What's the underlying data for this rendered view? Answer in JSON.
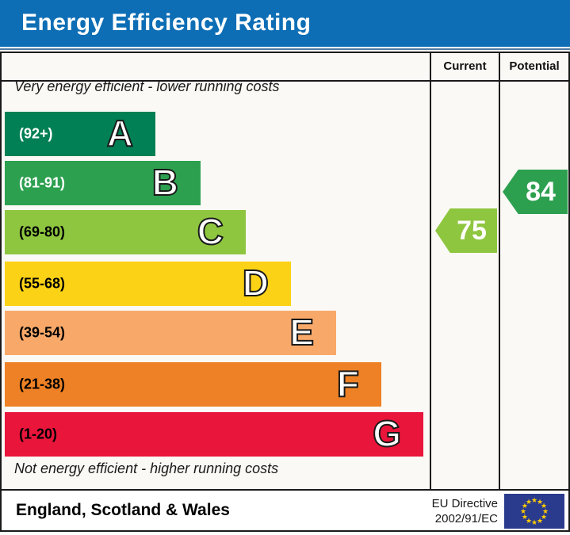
{
  "title": "Energy Efficiency Rating",
  "colors": {
    "header_blue": "#0d6eb5",
    "accent_line": "#4d7aa2",
    "border": "#1a1a1a",
    "chart_background": "#faf9f5"
  },
  "table": {
    "current_label": "Current",
    "potential_label": "Potential"
  },
  "notes": {
    "top": "Very energy efficient - lower running costs",
    "bottom": "Not energy efficient - higher running costs"
  },
  "bands": [
    {
      "letter": "A",
      "range": "(92+)",
      "color": "#008054",
      "text_color": "#ffffff"
    },
    {
      "letter": "B",
      "range": "(81-91)",
      "color": "#2da050",
      "text_color": "#ffffff"
    },
    {
      "letter": "C",
      "range": "(69-80)",
      "color": "#8ec63f",
      "text_color": "#000000"
    },
    {
      "letter": "D",
      "range": "(55-68)",
      "color": "#fcd216",
      "text_color": "#000000"
    },
    {
      "letter": "E",
      "range": "(39-54)",
      "color": "#f8a96a",
      "text_color": "#000000"
    },
    {
      "letter": "F",
      "range": "(21-38)",
      "color": "#ee8125",
      "text_color": "#000000"
    },
    {
      "letter": "G",
      "range": "(1-20)",
      "color": "#e9153b",
      "text_color": "#000000"
    }
  ],
  "ratings": {
    "current": {
      "value": "75",
      "band": "C",
      "color": "#8ec63f"
    },
    "potential": {
      "value": "84",
      "band": "B",
      "color": "#2da050"
    }
  },
  "footer": {
    "region": "England, Scotland & Wales",
    "directive_line1": "EU Directive",
    "directive_line2": "2002/91/EC",
    "eu_flag": {
      "blue": "#2a3b8d",
      "star_color": "#ffcc00"
    }
  },
  "chart_data": {
    "type": "bar",
    "title": "Energy Efficiency Rating",
    "categories": [
      "A",
      "B",
      "C",
      "D",
      "E",
      "F",
      "G"
    ],
    "band_ranges": [
      "92+",
      "81-91",
      "69-80",
      "55-68",
      "39-54",
      "21-38",
      "1-20"
    ],
    "band_colors": [
      "#008054",
      "#2da050",
      "#8ec63f",
      "#fcd216",
      "#f8a96a",
      "#ee8125",
      "#e9153b"
    ],
    "series": [
      {
        "name": "Current",
        "values": [
          75
        ],
        "band": "C"
      },
      {
        "name": "Potential",
        "values": [
          84
        ],
        "band": "B"
      }
    ],
    "value_range": [
      1,
      100
    ],
    "annotations": [
      "Very energy efficient - lower running costs",
      "Not energy efficient - higher running costs",
      "England, Scotland & Wales",
      "EU Directive 2002/91/EC"
    ],
    "legend_position": "none",
    "grid": false
  }
}
